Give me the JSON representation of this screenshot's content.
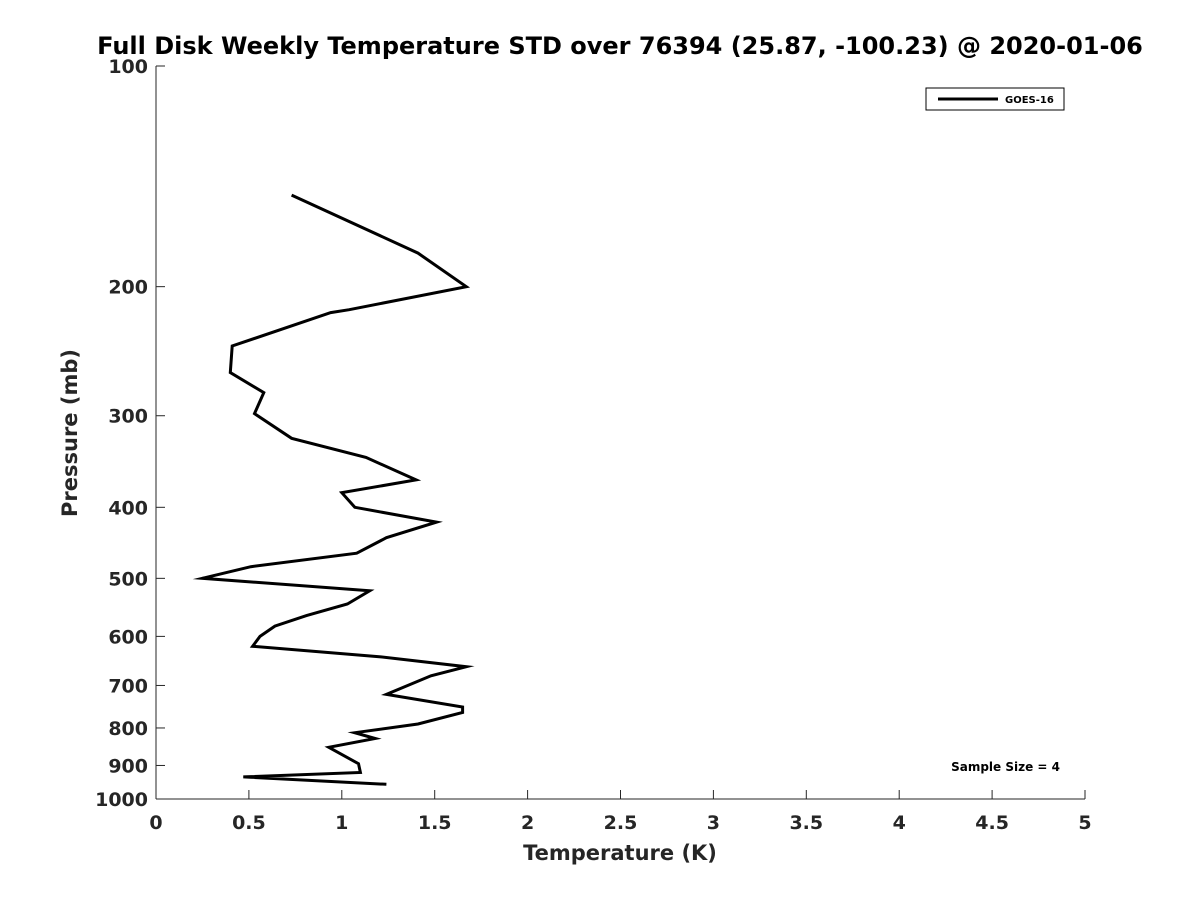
{
  "chart_data": {
    "type": "line",
    "title": "Full Disk Weekly Temperature STD over 76394 (25.87, -100.23) @ 2020-01-06",
    "xlabel": "Temperature (K)",
    "ylabel": "Pressure (mb)",
    "xlim": [
      0,
      5
    ],
    "ylim": [
      100,
      1000
    ],
    "y_scale": "log",
    "y_direction": "reversed",
    "grid": false,
    "legend_position": "top-right",
    "x_ticks": [
      0,
      0.5,
      1,
      1.5,
      2,
      2.5,
      3,
      3.5,
      4,
      4.5,
      5
    ],
    "x_tick_labels": [
      "0",
      "0.5",
      "1",
      "1.5",
      "2",
      "2.5",
      "3",
      "3.5",
      "4",
      "4.5",
      "5"
    ],
    "y_ticks": [
      100,
      200,
      300,
      400,
      500,
      600,
      700,
      800,
      900,
      1000
    ],
    "y_tick_labels": [
      "100",
      "200",
      "300",
      "400",
      "500",
      "600",
      "700",
      "800",
      "900",
      "1000"
    ],
    "annotation": "Sample Size = 4",
    "series": [
      {
        "name": "GOES-16",
        "color": "#000000",
        "points": [
          {
            "x": 0.73,
            "y": 150
          },
          {
            "x": 1.41,
            "y": 180
          },
          {
            "x": 1.67,
            "y": 200
          },
          {
            "x": 1.04,
            "y": 215
          },
          {
            "x": 0.94,
            "y": 217
          },
          {
            "x": 0.41,
            "y": 241
          },
          {
            "x": 0.4,
            "y": 262
          },
          {
            "x": 0.58,
            "y": 279
          },
          {
            "x": 0.53,
            "y": 298
          },
          {
            "x": 0.73,
            "y": 322
          },
          {
            "x": 1.13,
            "y": 342
          },
          {
            "x": 1.4,
            "y": 367
          },
          {
            "x": 1.0,
            "y": 382
          },
          {
            "x": 1.07,
            "y": 400
          },
          {
            "x": 1.51,
            "y": 419
          },
          {
            "x": 1.24,
            "y": 440
          },
          {
            "x": 1.08,
            "y": 462
          },
          {
            "x": 0.51,
            "y": 482
          },
          {
            "x": 0.25,
            "y": 500
          },
          {
            "x": 1.15,
            "y": 520
          },
          {
            "x": 1.03,
            "y": 542
          },
          {
            "x": 0.81,
            "y": 562
          },
          {
            "x": 0.64,
            "y": 581
          },
          {
            "x": 0.56,
            "y": 600
          },
          {
            "x": 0.52,
            "y": 619
          },
          {
            "x": 1.21,
            "y": 640
          },
          {
            "x": 1.67,
            "y": 660
          },
          {
            "x": 1.48,
            "y": 679
          },
          {
            "x": 1.24,
            "y": 720
          },
          {
            "x": 1.65,
            "y": 749
          },
          {
            "x": 1.65,
            "y": 762
          },
          {
            "x": 1.41,
            "y": 790
          },
          {
            "x": 1.07,
            "y": 812
          },
          {
            "x": 1.18,
            "y": 827
          },
          {
            "x": 0.93,
            "y": 850
          },
          {
            "x": 1.09,
            "y": 895
          },
          {
            "x": 1.1,
            "y": 920
          },
          {
            "x": 0.47,
            "y": 933
          },
          {
            "x": 1.24,
            "y": 955
          }
        ]
      }
    ]
  }
}
